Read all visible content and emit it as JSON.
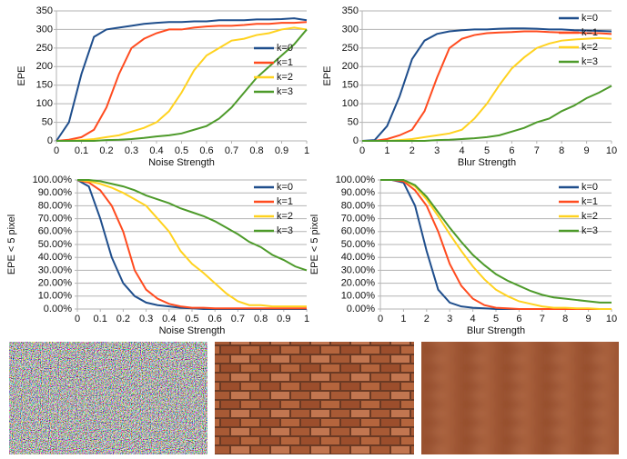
{
  "chart_data": [
    {
      "type": "line",
      "xlabel": "Noise Strength",
      "ylabel": "EPE",
      "x": [
        0,
        0.05,
        0.1,
        0.15,
        0.2,
        0.25,
        0.3,
        0.35,
        0.4,
        0.45,
        0.5,
        0.55,
        0.6,
        0.65,
        0.7,
        0.75,
        0.8,
        0.85,
        0.9,
        0.95,
        1
      ],
      "xlim": [
        0,
        1
      ],
      "xticks": [
        0,
        0.1,
        0.2,
        0.3,
        0.4,
        0.5,
        0.6,
        0.7,
        0.8,
        0.9,
        1
      ],
      "ylim": [
        0,
        350
      ],
      "yticks": [
        0,
        50,
        100,
        150,
        200,
        250,
        300,
        350
      ],
      "grid": true,
      "legend": "lower right",
      "series": [
        {
          "name": "k=0",
          "color": "#1f4e8c",
          "values": [
            0,
            50,
            180,
            280,
            300,
            305,
            310,
            315,
            318,
            320,
            320,
            322,
            322,
            325,
            325,
            325,
            327,
            327,
            328,
            330,
            325
          ]
        },
        {
          "name": "k=1",
          "color": "#ff4b1f",
          "values": [
            0,
            3,
            10,
            30,
            90,
            180,
            250,
            275,
            290,
            300,
            300,
            305,
            308,
            310,
            310,
            312,
            315,
            315,
            318,
            318,
            320
          ]
        },
        {
          "name": "k=2",
          "color": "#ffd21f",
          "values": [
            0,
            0,
            2,
            5,
            10,
            15,
            25,
            35,
            50,
            80,
            130,
            190,
            230,
            250,
            270,
            275,
            285,
            290,
            300,
            305,
            300
          ]
        },
        {
          "name": "k=3",
          "color": "#4d9a2a",
          "values": [
            0,
            0,
            0,
            0,
            2,
            3,
            5,
            8,
            12,
            15,
            20,
            30,
            40,
            60,
            90,
            130,
            170,
            200,
            230,
            260,
            300
          ]
        }
      ]
    },
    {
      "type": "line",
      "xlabel": "Blur Strength",
      "ylabel": "EPE",
      "x": [
        0,
        0.5,
        1,
        1.5,
        2,
        2.5,
        3,
        3.5,
        4,
        4.5,
        5,
        5.5,
        6,
        6.5,
        7,
        7.5,
        8,
        8.5,
        9,
        9.5,
        10
      ],
      "xlim": [
        0,
        10
      ],
      "xticks": [
        0,
        1,
        2,
        3,
        4,
        5,
        6,
        7,
        8,
        9,
        10
      ],
      "ylim": [
        0,
        350
      ],
      "yticks": [
        0,
        50,
        100,
        150,
        200,
        250,
        300,
        350
      ],
      "grid": true,
      "legend": "upper right",
      "series": [
        {
          "name": "k=0",
          "color": "#1f4e8c",
          "values": [
            0,
            2,
            40,
            120,
            220,
            270,
            288,
            295,
            298,
            300,
            300,
            302,
            303,
            303,
            302,
            300,
            300,
            298,
            297,
            296,
            295
          ]
        },
        {
          "name": "k=1",
          "color": "#ff4b1f",
          "values": [
            0,
            0,
            5,
            15,
            30,
            80,
            170,
            250,
            275,
            285,
            290,
            292,
            293,
            295,
            295,
            293,
            292,
            292,
            290,
            290,
            288
          ]
        },
        {
          "name": "k=2",
          "color": "#ffd21f",
          "values": [
            0,
            0,
            0,
            2,
            5,
            10,
            15,
            20,
            30,
            60,
            100,
            150,
            195,
            225,
            250,
            262,
            270,
            273,
            275,
            277,
            275
          ]
        },
        {
          "name": "k=3",
          "color": "#4d9a2a",
          "values": [
            0,
            0,
            0,
            0,
            0,
            0,
            2,
            3,
            5,
            7,
            10,
            15,
            25,
            35,
            50,
            60,
            80,
            95,
            115,
            130,
            148
          ]
        }
      ]
    },
    {
      "type": "line",
      "xlabel": "Noise Strength",
      "ylabel": "EPE < 5 pixel",
      "x": [
        0,
        0.05,
        0.1,
        0.15,
        0.2,
        0.25,
        0.3,
        0.35,
        0.4,
        0.45,
        0.5,
        0.55,
        0.6,
        0.65,
        0.7,
        0.75,
        0.8,
        0.85,
        0.9,
        0.95,
        1
      ],
      "xlim": [
        0,
        1
      ],
      "xticks": [
        0,
        0.1,
        0.2,
        0.3,
        0.4,
        0.5,
        0.6,
        0.7,
        0.8,
        0.9,
        1
      ],
      "ylim": [
        0,
        100
      ],
      "yticks": [
        {
          "value": 0,
          "label": "0.00%"
        },
        {
          "value": 10,
          "label": "10.00%"
        },
        {
          "value": 20,
          "label": "20.00%"
        },
        {
          "value": 30,
          "label": "30.00%"
        },
        {
          "value": 40,
          "label": "40.00%"
        },
        {
          "value": 50,
          "label": "50.00%"
        },
        {
          "value": 60,
          "label": "60.00%"
        },
        {
          "value": 70,
          "label": "70.00%"
        },
        {
          "value": 80,
          "label": "80.00%"
        },
        {
          "value": 90,
          "label": "90.00%"
        },
        {
          "value": 100,
          "label": "100.00%"
        }
      ],
      "grid": true,
      "legend": "upper right",
      "series": [
        {
          "name": "k=0",
          "color": "#1f4e8c",
          "values": [
            100,
            95,
            70,
            40,
            20,
            10,
            5,
            3,
            2,
            1,
            0.5,
            0,
            0,
            0,
            0,
            0,
            0,
            0,
            0,
            0,
            0
          ]
        },
        {
          "name": "k=1",
          "color": "#ff4b1f",
          "values": [
            100,
            98,
            92,
            80,
            60,
            30,
            15,
            8,
            4,
            2,
            1,
            1,
            0.5,
            0.5,
            0.5,
            0.5,
            0.5,
            0.5,
            0.5,
            0.5,
            0.5
          ]
        },
        {
          "name": "k=2",
          "color": "#ffd21f",
          "values": [
            100,
            99,
            97,
            94,
            90,
            85,
            80,
            70,
            60,
            45,
            35,
            28,
            20,
            12,
            6,
            3,
            3,
            2,
            2,
            2,
            2
          ]
        },
        {
          "name": "k=3",
          "color": "#4d9a2a",
          "values": [
            100,
            100,
            99,
            97,
            95,
            92,
            88,
            85,
            82,
            78,
            75,
            72,
            68,
            63,
            58,
            52,
            48,
            42,
            38,
            33,
            30
          ]
        }
      ]
    },
    {
      "type": "line",
      "xlabel": "Blur Strength",
      "ylabel": "EPE < 5 pixel",
      "x": [
        0,
        0.5,
        1,
        1.5,
        2,
        2.5,
        3,
        3.5,
        4,
        4.5,
        5,
        5.5,
        6,
        6.5,
        7,
        7.5,
        8,
        8.5,
        9,
        9.5,
        10
      ],
      "xlim": [
        0,
        10
      ],
      "xticks": [
        0,
        1,
        2,
        3,
        4,
        5,
        6,
        7,
        8,
        9,
        10
      ],
      "ylim": [
        0,
        100
      ],
      "yticks": [
        {
          "value": 0,
          "label": "0.00%"
        },
        {
          "value": 10,
          "label": "10.00%"
        },
        {
          "value": 20,
          "label": "20.00%"
        },
        {
          "value": 30,
          "label": "30.00%"
        },
        {
          "value": 40,
          "label": "40.00%"
        },
        {
          "value": 50,
          "label": "50.00%"
        },
        {
          "value": 60,
          "label": "60.00%"
        },
        {
          "value": 70,
          "label": "70.00%"
        },
        {
          "value": 80,
          "label": "80.00%"
        },
        {
          "value": 90,
          "label": "90.00%"
        },
        {
          "value": 100,
          "label": "100.00%"
        }
      ],
      "grid": true,
      "legend": "upper right",
      "series": [
        {
          "name": "k=0",
          "color": "#1f4e8c",
          "values": [
            100,
            100,
            98,
            80,
            45,
            15,
            5,
            2,
            1,
            0.5,
            0,
            0,
            0,
            0,
            0,
            0,
            0,
            0,
            0,
            0,
            0
          ]
        },
        {
          "name": "k=1",
          "color": "#ff4b1f",
          "values": [
            100,
            100,
            99,
            92,
            80,
            60,
            35,
            18,
            8,
            3,
            1,
            0.5,
            0,
            0,
            0,
            0,
            0,
            0,
            0,
            0,
            0
          ]
        },
        {
          "name": "k=2",
          "color": "#ffd21f",
          "values": [
            100,
            100,
            100,
            95,
            85,
            72,
            58,
            45,
            33,
            23,
            15,
            10,
            6,
            4,
            2,
            1,
            1,
            0.5,
            0.5,
            0,
            0
          ]
        },
        {
          "name": "k=3",
          "color": "#4d9a2a",
          "values": [
            100,
            100,
            100,
            96,
            87,
            75,
            63,
            52,
            42,
            34,
            27,
            22,
            18,
            14,
            11,
            9,
            8,
            7,
            6,
            5,
            5
          ]
        }
      ]
    }
  ]
}
